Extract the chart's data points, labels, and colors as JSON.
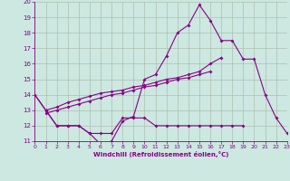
{
  "x": [
    0,
    1,
    2,
    3,
    4,
    5,
    6,
    7,
    8,
    9,
    10,
    11,
    12,
    13,
    14,
    15,
    16,
    17,
    18,
    19,
    20,
    21,
    22,
    23
  ],
  "line_main": [
    14,
    13,
    12,
    12,
    12,
    11.5,
    10.8,
    11.0,
    12.3,
    12.6,
    15.0,
    15.3,
    16.5,
    18.0,
    18.5,
    19.8,
    18.8,
    17.5,
    17.5,
    16.3,
    16.3,
    14.0,
    12.5,
    11.5
  ],
  "line_flat": [
    14,
    13,
    12,
    12,
    12,
    11.5,
    11.5,
    11.5,
    12.5,
    12.5,
    12.5,
    12,
    12,
    12,
    12,
    12,
    12,
    12,
    12,
    12,
    null,
    null,
    null,
    null
  ],
  "line_rise1": [
    null,
    13.0,
    13.2,
    13.5,
    13.7,
    13.9,
    14.1,
    14.2,
    14.3,
    14.5,
    14.6,
    14.8,
    15.0,
    15.1,
    15.3,
    15.5,
    16.0,
    16.4,
    null,
    null,
    null,
    null,
    null,
    null
  ],
  "line_rise2": [
    null,
    12.8,
    13.0,
    13.2,
    13.4,
    13.6,
    13.8,
    14.0,
    14.1,
    14.3,
    14.5,
    14.6,
    14.8,
    15.0,
    15.1,
    15.3,
    15.5,
    null,
    null,
    null,
    null,
    null,
    null,
    null
  ],
  "bg_color": "#cce8e0",
  "line_color": "#880088",
  "grid_color": "#aabbaa",
  "xlabel": "Windchill (Refroidissement éolien,°C)",
  "ylim": [
    11,
    20
  ],
  "xlim": [
    0,
    23
  ],
  "yticks": [
    11,
    12,
    13,
    14,
    15,
    16,
    17,
    18,
    19,
    20
  ],
  "xticks": [
    0,
    1,
    2,
    3,
    4,
    5,
    6,
    7,
    8,
    9,
    10,
    11,
    12,
    13,
    14,
    15,
    16,
    17,
    18,
    19,
    20,
    21,
    22,
    23
  ]
}
